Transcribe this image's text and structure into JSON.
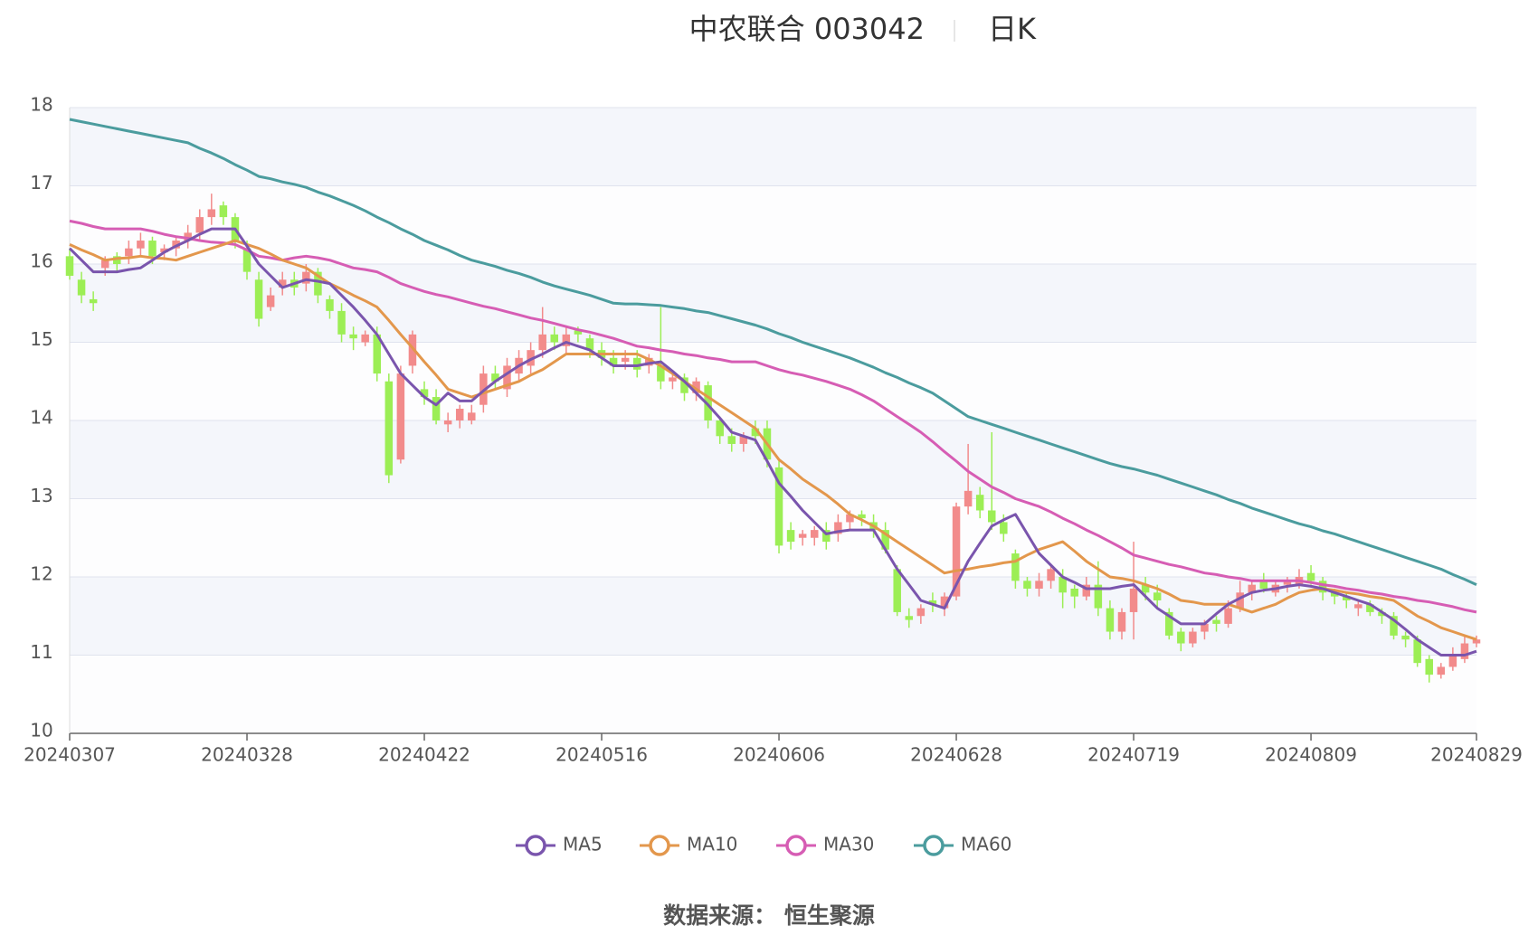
{
  "chart_data": {
    "type": "candlestick",
    "title": "中农联合 003042",
    "subtitle": "日K",
    "source": "数据来源： 恒生聚源",
    "up_color": "#f28b8b",
    "down_color": "#9cee55",
    "ylim": [
      10,
      18
    ],
    "yticks": [
      10,
      11,
      12,
      13,
      14,
      15,
      16,
      17,
      18
    ],
    "grid": true,
    "categories": [
      "20240307",
      null,
      null,
      null,
      null,
      null,
      null,
      null,
      null,
      null,
      null,
      null,
      null,
      null,
      null,
      "20240328",
      null,
      null,
      null,
      null,
      null,
      null,
      null,
      null,
      null,
      null,
      null,
      null,
      null,
      null,
      "20240422",
      null,
      null,
      null,
      null,
      null,
      null,
      null,
      null,
      null,
      null,
      null,
      null,
      null,
      null,
      "20240516",
      null,
      null,
      null,
      null,
      null,
      null,
      null,
      null,
      null,
      null,
      null,
      null,
      null,
      null,
      "20240606",
      null,
      null,
      null,
      null,
      null,
      null,
      null,
      null,
      null,
      null,
      null,
      null,
      null,
      null,
      "20240628",
      null,
      null,
      null,
      null,
      null,
      null,
      null,
      null,
      null,
      null,
      null,
      null,
      null,
      null,
      "20240719",
      null,
      null,
      null,
      null,
      null,
      null,
      null,
      null,
      null,
      null,
      null,
      null,
      null,
      null,
      "20240809",
      null,
      null,
      null,
      null,
      null,
      null,
      null,
      null,
      null,
      null,
      null,
      null,
      null,
      "20240829"
    ],
    "open": [
      16.1,
      15.8,
      15.55,
      15.95,
      16.1,
      16.1,
      16.2,
      16.3,
      16.15,
      16.2,
      16.3,
      16.4,
      16.6,
      16.75,
      16.6,
      16.2,
      15.8,
      15.45,
      15.7,
      15.8,
      15.75,
      15.9,
      15.55,
      15.4,
      15.1,
      15.0,
      15.1,
      14.5,
      13.5,
      14.7,
      14.4,
      14.3,
      13.95,
      14.0,
      14.0,
      14.2,
      14.6,
      14.4,
      14.6,
      14.7,
      14.9,
      15.1,
      14.95,
      15.15,
      15.05,
      14.9,
      14.8,
      14.75,
      14.8,
      14.7,
      14.7,
      14.5,
      14.55,
      14.35,
      14.45,
      14.0,
      13.8,
      13.7,
      13.9,
      13.9,
      13.4,
      12.6,
      12.5,
      12.5,
      12.6,
      12.55,
      12.7,
      12.8,
      12.7,
      12.6,
      12.1,
      11.5,
      11.5,
      11.7,
      11.6,
      11.75,
      12.9,
      13.05,
      12.85,
      12.7,
      12.3,
      11.95,
      11.85,
      11.95,
      12.0,
      11.85,
      11.75,
      11.9,
      11.6,
      11.3,
      11.55,
      11.9,
      11.8,
      11.55,
      11.3,
      11.15,
      11.3,
      11.45,
      11.4,
      11.6,
      11.8,
      11.95,
      11.8,
      11.9,
      11.9,
      12.05,
      11.95,
      11.8,
      11.75,
      11.6,
      11.65,
      11.55,
      11.5,
      11.25,
      11.2,
      10.95,
      10.75,
      10.85,
      10.95,
      11.15
    ],
    "high": [
      16.2,
      15.9,
      15.65,
      16.1,
      16.15,
      16.3,
      16.4,
      16.35,
      16.25,
      16.35,
      16.5,
      16.7,
      16.9,
      16.8,
      16.65,
      16.3,
      15.9,
      15.7,
      15.9,
      15.9,
      16.0,
      15.95,
      15.6,
      15.5,
      15.2,
      15.15,
      15.2,
      14.6,
      14.7,
      15.15,
      14.5,
      14.4,
      14.1,
      14.2,
      14.2,
      14.7,
      14.7,
      14.8,
      14.9,
      15.0,
      15.45,
      15.2,
      15.2,
      15.2,
      15.1,
      15.0,
      14.9,
      14.9,
      14.9,
      14.85,
      15.45,
      14.6,
      14.6,
      14.55,
      14.5,
      14.05,
      13.9,
      13.85,
      14.0,
      14.0,
      13.5,
      12.7,
      12.6,
      12.65,
      12.7,
      12.8,
      12.85,
      12.85,
      12.8,
      12.7,
      12.15,
      11.6,
      11.65,
      11.8,
      11.8,
      12.95,
      13.7,
      13.15,
      13.85,
      12.8,
      12.35,
      12.0,
      12.05,
      12.15,
      12.1,
      11.9,
      12.0,
      12.2,
      11.7,
      11.6,
      12.45,
      12.0,
      11.9,
      11.6,
      11.35,
      11.35,
      11.45,
      11.5,
      11.7,
      11.95,
      11.95,
      12.05,
      11.95,
      12.0,
      12.1,
      12.15,
      12.0,
      11.85,
      11.8,
      11.7,
      11.7,
      11.6,
      11.55,
      11.3,
      11.25,
      11.0,
      10.9,
      11.1,
      11.25,
      11.25
    ],
    "low": [
      15.8,
      15.5,
      15.4,
      15.85,
      15.9,
      16.0,
      16.1,
      16.0,
      16.05,
      16.1,
      16.2,
      16.3,
      16.5,
      16.5,
      16.2,
      15.8,
      15.2,
      15.4,
      15.6,
      15.6,
      15.65,
      15.5,
      15.3,
      15.0,
      14.9,
      14.95,
      14.5,
      13.2,
      13.45,
      14.6,
      14.2,
      13.95,
      13.85,
      13.9,
      13.95,
      14.1,
      14.4,
      14.3,
      14.5,
      14.6,
      14.8,
      14.9,
      14.85,
      15.0,
      14.8,
      14.7,
      14.6,
      14.65,
      14.55,
      14.6,
      14.4,
      14.4,
      14.25,
      14.25,
      13.9,
      13.7,
      13.6,
      13.6,
      13.7,
      13.4,
      12.3,
      12.35,
      12.4,
      12.4,
      12.35,
      12.45,
      12.6,
      12.65,
      12.5,
      12.3,
      11.5,
      11.35,
      11.4,
      11.55,
      11.5,
      11.7,
      12.8,
      12.75,
      12.6,
      12.45,
      11.85,
      11.75,
      11.75,
      11.85,
      11.6,
      11.6,
      11.7,
      11.5,
      11.2,
      11.2,
      11.2,
      11.7,
      11.6,
      11.2,
      11.05,
      11.1,
      11.2,
      11.3,
      11.35,
      11.55,
      11.7,
      11.8,
      11.75,
      11.8,
      11.85,
      11.9,
      11.7,
      11.65,
      11.6,
      11.5,
      11.5,
      11.4,
      11.2,
      11.1,
      10.85,
      10.65,
      10.7,
      10.8,
      10.9,
      11.1
    ],
    "close": [
      15.85,
      15.6,
      15.5,
      16.05,
      16.0,
      16.2,
      16.3,
      16.1,
      16.2,
      16.3,
      16.4,
      16.6,
      16.7,
      16.6,
      16.3,
      15.9,
      15.3,
      15.6,
      15.8,
      15.7,
      15.9,
      15.6,
      15.4,
      15.1,
      15.05,
      15.1,
      14.6,
      13.3,
      14.6,
      15.1,
      14.3,
      14.0,
      14.0,
      14.15,
      14.1,
      14.6,
      14.5,
      14.7,
      14.8,
      14.9,
      15.1,
      15.0,
      15.1,
      15.1,
      14.9,
      14.8,
      14.7,
      14.8,
      14.65,
      14.8,
      14.5,
      14.55,
      14.35,
      14.5,
      14.0,
      13.8,
      13.7,
      13.8,
      13.8,
      13.5,
      12.4,
      12.45,
      12.55,
      12.6,
      12.45,
      12.7,
      12.8,
      12.75,
      12.6,
      12.35,
      11.55,
      11.45,
      11.6,
      11.65,
      11.75,
      12.9,
      13.1,
      12.85,
      12.7,
      12.55,
      11.95,
      11.85,
      11.95,
      12.1,
      11.8,
      11.75,
      11.9,
      11.6,
      11.3,
      11.55,
      11.85,
      11.8,
      11.7,
      11.25,
      11.15,
      11.3,
      11.4,
      11.4,
      11.6,
      11.8,
      11.9,
      11.85,
      11.9,
      11.95,
      12.0,
      11.95,
      11.8,
      11.75,
      11.7,
      11.65,
      11.55,
      11.5,
      11.25,
      11.2,
      10.9,
      10.75,
      10.85,
      11.0,
      11.15,
      11.2
    ],
    "series": [
      {
        "name": "MA5",
        "color": "#7a55ad",
        "values": [
          16.2,
          16.05,
          15.9,
          15.9,
          15.9,
          15.93,
          15.95,
          16.05,
          16.15,
          16.23,
          16.3,
          16.38,
          16.45,
          16.45,
          16.45,
          16.23,
          16.0,
          15.85,
          15.7,
          15.75,
          15.8,
          15.78,
          15.75,
          15.6,
          15.45,
          15.28,
          15.1,
          14.85,
          14.6,
          14.45,
          14.3,
          14.2,
          14.35,
          14.25,
          14.25,
          14.38,
          14.5,
          14.6,
          14.7,
          14.78,
          14.85,
          14.93,
          15.0,
          14.95,
          14.9,
          14.8,
          14.7,
          14.7,
          14.7,
          14.73,
          14.75,
          14.63,
          14.5,
          14.35,
          14.2,
          14.03,
          13.85,
          13.8,
          13.75,
          13.48,
          13.2,
          13.03,
          12.85,
          12.7,
          12.55,
          12.58,
          12.6,
          12.6,
          12.6,
          12.35,
          12.1,
          11.9,
          11.7,
          11.65,
          11.6,
          11.9,
          12.2,
          12.43,
          12.65,
          12.73,
          12.8,
          12.55,
          12.3,
          12.15,
          12.0,
          11.93,
          11.85,
          11.85,
          11.85,
          11.88,
          11.9,
          11.75,
          11.6,
          11.5,
          11.4,
          11.4,
          11.4,
          11.53,
          11.65,
          11.73,
          11.8,
          11.83,
          11.85,
          11.88,
          11.9,
          11.88,
          11.85,
          11.8,
          11.75,
          11.7,
          11.65,
          11.55,
          11.45,
          11.33,
          11.2,
          11.1,
          11.0,
          11.0,
          11.0,
          11.05
        ]
      },
      {
        "name": "MA10",
        "color": "#e3974c",
        "values": [
          16.25,
          16.18,
          16.12,
          16.05,
          16.07,
          16.08,
          16.1,
          16.08,
          16.07,
          16.05,
          16.1,
          16.15,
          16.2,
          16.25,
          16.3,
          16.25,
          16.2,
          16.13,
          16.05,
          16.0,
          15.95,
          15.85,
          15.75,
          15.68,
          15.6,
          15.53,
          15.45,
          15.28,
          15.1,
          14.93,
          14.75,
          14.58,
          14.4,
          14.35,
          14.3,
          14.35,
          14.4,
          14.45,
          14.5,
          14.58,
          14.65,
          14.75,
          14.85,
          14.85,
          14.85,
          14.85,
          14.85,
          14.85,
          14.85,
          14.78,
          14.7,
          14.6,
          14.5,
          14.4,
          14.3,
          14.2,
          14.1,
          14.0,
          13.9,
          13.7,
          13.5,
          13.38,
          13.25,
          13.15,
          13.05,
          12.93,
          12.8,
          12.73,
          12.65,
          12.55,
          12.45,
          12.35,
          12.25,
          12.15,
          12.05,
          12.08,
          12.1,
          12.13,
          12.15,
          12.18,
          12.2,
          12.28,
          12.35,
          12.4,
          12.45,
          12.33,
          12.2,
          12.1,
          12.0,
          11.98,
          11.95,
          11.9,
          11.85,
          11.78,
          11.7,
          11.68,
          11.65,
          11.65,
          11.65,
          11.6,
          11.55,
          11.6,
          11.65,
          11.73,
          11.8,
          11.83,
          11.85,
          11.83,
          11.8,
          11.78,
          11.75,
          11.73,
          11.7,
          11.6,
          11.5,
          11.43,
          11.35,
          11.3,
          11.25,
          11.2
        ]
      },
      {
        "name": "MA30",
        "color": "#d65db4",
        "values": [
          16.55,
          16.52,
          16.48,
          16.45,
          16.45,
          16.45,
          16.45,
          16.42,
          16.38,
          16.35,
          16.33,
          16.3,
          16.28,
          16.27,
          16.25,
          16.18,
          16.1,
          16.08,
          16.05,
          16.08,
          16.1,
          16.08,
          16.05,
          16.0,
          15.95,
          15.93,
          15.9,
          15.83,
          15.75,
          15.7,
          15.65,
          15.61,
          15.58,
          15.54,
          15.5,
          15.46,
          15.43,
          15.39,
          15.35,
          15.31,
          15.28,
          15.24,
          15.2,
          15.16,
          15.13,
          15.09,
          15.05,
          15.0,
          14.95,
          14.93,
          14.9,
          14.88,
          14.85,
          14.83,
          14.8,
          14.78,
          14.75,
          14.75,
          14.75,
          14.7,
          14.65,
          14.61,
          14.58,
          14.54,
          14.5,
          14.45,
          14.4,
          14.33,
          14.25,
          14.15,
          14.05,
          13.95,
          13.85,
          13.73,
          13.6,
          13.48,
          13.35,
          13.25,
          13.15,
          13.08,
          13.0,
          12.95,
          12.9,
          12.83,
          12.75,
          12.68,
          12.6,
          12.53,
          12.45,
          12.37,
          12.28,
          12.24,
          12.2,
          12.16,
          12.13,
          12.09,
          12.05,
          12.03,
          12.0,
          11.98,
          11.95,
          11.95,
          11.95,
          11.95,
          11.95,
          11.93,
          11.9,
          11.88,
          11.85,
          11.83,
          11.8,
          11.78,
          11.75,
          11.73,
          11.7,
          11.68,
          11.65,
          11.62,
          11.58,
          11.55
        ]
      },
      {
        "name": "MA60",
        "color": "#4b9c9e",
        "values": [
          17.85,
          17.82,
          17.79,
          17.76,
          17.73,
          17.7,
          17.67,
          17.64,
          17.61,
          17.58,
          17.55,
          17.48,
          17.42,
          17.35,
          17.27,
          17.2,
          17.12,
          17.09,
          17.05,
          17.02,
          16.98,
          16.92,
          16.87,
          16.81,
          16.75,
          16.68,
          16.6,
          16.53,
          16.45,
          16.38,
          16.3,
          16.24,
          16.18,
          16.11,
          16.05,
          16.01,
          15.97,
          15.92,
          15.88,
          15.83,
          15.77,
          15.72,
          15.68,
          15.64,
          15.6,
          15.55,
          15.5,
          15.49,
          15.49,
          15.48,
          15.47,
          15.45,
          15.43,
          15.4,
          15.38,
          15.34,
          15.3,
          15.26,
          15.22,
          15.17,
          15.11,
          15.06,
          15.0,
          14.95,
          14.9,
          14.85,
          14.8,
          14.74,
          14.68,
          14.61,
          14.55,
          14.48,
          14.42,
          14.35,
          14.25,
          14.15,
          14.05,
          14.0,
          13.95,
          13.9,
          13.85,
          13.8,
          13.75,
          13.7,
          13.65,
          13.6,
          13.55,
          13.5,
          13.45,
          13.41,
          13.38,
          13.34,
          13.3,
          13.25,
          13.2,
          13.15,
          13.1,
          13.05,
          12.99,
          12.94,
          12.88,
          12.83,
          12.78,
          12.73,
          12.68,
          12.64,
          12.59,
          12.55,
          12.5,
          12.45,
          12.4,
          12.35,
          12.3,
          12.25,
          12.2,
          12.15,
          12.1,
          12.03,
          11.97,
          11.9
        ]
      }
    ]
  }
}
